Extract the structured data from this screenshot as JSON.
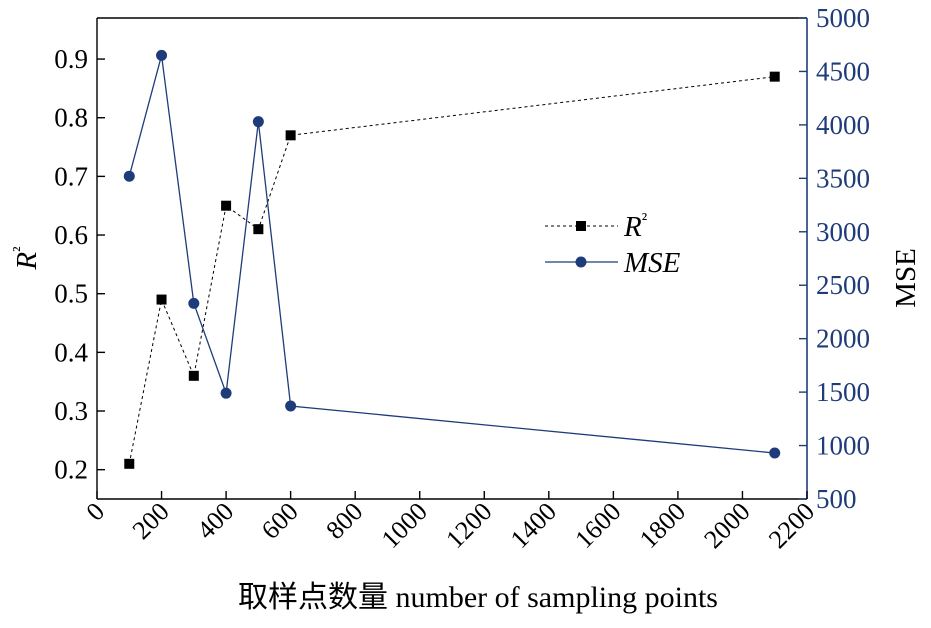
{
  "chart_data": {
    "type": "line",
    "xlabel": "取样点数量 number of sampling points",
    "ylabel_left": "R²",
    "ylabel_right": "MSE",
    "xlim": [
      0,
      2200
    ],
    "xticks": [
      0,
      200,
      400,
      600,
      800,
      1000,
      1200,
      1400,
      1600,
      1800,
      2000,
      2200
    ],
    "ylim_left": [
      0.15,
      0.97
    ],
    "yticks_left": [
      "0.2",
      "0.3",
      "0.4",
      "0.5",
      "0.6",
      "0.7",
      "0.8",
      "0.9"
    ],
    "ylim_right": [
      500,
      5000
    ],
    "yticks_right": [
      500,
      1000,
      1500,
      2000,
      2500,
      3000,
      3500,
      4000,
      4500,
      5000
    ],
    "grid": false,
    "legend_position": "right-center",
    "series": [
      {
        "name": "R²",
        "axis": "left",
        "color": "#000000",
        "line_style": "dashed",
        "marker": "square",
        "x": [
          100,
          200,
          300,
          400,
          500,
          600,
          2100
        ],
        "y": [
          0.21,
          0.49,
          0.36,
          0.65,
          0.61,
          0.77,
          0.87
        ]
      },
      {
        "name": "MSE",
        "axis": "right",
        "color": "#1f3c7a",
        "line_style": "solid",
        "marker": "circle",
        "x": [
          100,
          200,
          300,
          400,
          500,
          600,
          2100
        ],
        "y": [
          3520,
          4650,
          2330,
          1490,
          4030,
          1370,
          930
        ]
      }
    ]
  }
}
